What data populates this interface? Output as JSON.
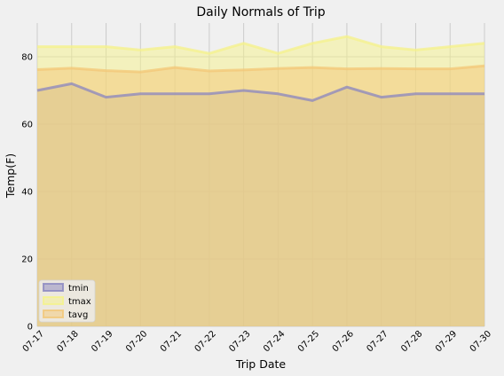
{
  "chart_data": {
    "type": "area",
    "title": "Daily Normals of Trip",
    "xlabel": "Trip Date",
    "ylabel": "Temp(F)",
    "categories": [
      "07-17",
      "07-18",
      "07-19",
      "07-20",
      "07-21",
      "07-22",
      "07-23",
      "07-24",
      "07-25",
      "07-26",
      "07-27",
      "07-28",
      "07-29",
      "07-30"
    ],
    "ylim": [
      0,
      90
    ],
    "yticks": [
      0,
      20,
      40,
      60,
      80
    ],
    "grid": true,
    "stacked": false,
    "legend_position": "lower-left",
    "series": [
      {
        "name": "tmin",
        "color": "#8a86c0",
        "values": [
          70,
          72,
          68,
          69,
          69,
          69,
          70,
          69,
          67,
          71,
          68,
          69,
          69,
          69
        ]
      },
      {
        "name": "tmax",
        "color": "#f5f28a",
        "values": [
          83,
          83,
          83,
          82,
          83,
          81,
          84,
          81,
          84,
          86,
          83,
          82,
          83,
          84
        ]
      },
      {
        "name": "tavg",
        "color": "#f3c777",
        "values": [
          76.2,
          76.6,
          75.9,
          75.5,
          76.8,
          75.8,
          76.1,
          76.5,
          76.8,
          76.4,
          76.5,
          76.4,
          76.4,
          77.3
        ]
      }
    ]
  }
}
